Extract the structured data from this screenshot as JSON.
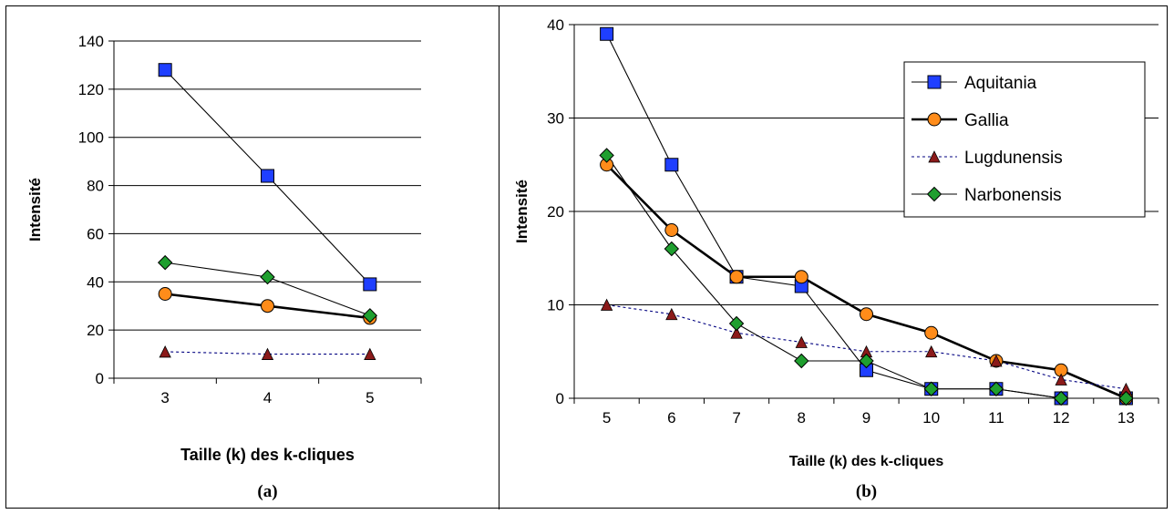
{
  "chart_data": [
    {
      "type": "line",
      "panel_label": "(a)",
      "xlabel": "Taille (k) des k-cliques",
      "ylabel": "Intensité",
      "categories": [
        "3",
        "4",
        "5"
      ],
      "ylim": [
        0,
        140
      ],
      "yticks": [
        "0",
        "20",
        "40",
        "60",
        "80",
        "100",
        "120",
        "140"
      ],
      "grid": "horizontal",
      "legend": "none",
      "series": [
        {
          "key": "aquitania",
          "values": [
            128,
            84,
            39
          ]
        },
        {
          "key": "gallia",
          "values": [
            35,
            30,
            25
          ]
        },
        {
          "key": "lugdunensis",
          "values": [
            11,
            10,
            10
          ]
        },
        {
          "key": "narbonensis",
          "values": [
            48,
            42,
            26
          ]
        }
      ]
    },
    {
      "type": "line",
      "panel_label": "(b)",
      "xlabel": "Taille (k) des k-cliques",
      "ylabel": "Intensité",
      "categories": [
        "5",
        "6",
        "7",
        "8",
        "9",
        "10",
        "11",
        "12",
        "13"
      ],
      "ylim": [
        0,
        40
      ],
      "yticks": [
        "0",
        "10",
        "20",
        "30",
        "40"
      ],
      "grid": "horizontal",
      "legend": "top-right",
      "series": [
        {
          "key": "aquitania",
          "name": "Aquitania",
          "values": [
            39,
            25,
            13,
            12,
            3,
            1,
            1,
            0,
            0
          ]
        },
        {
          "key": "gallia",
          "name": "Gallia",
          "values": [
            25,
            18,
            13,
            13,
            9,
            7,
            4,
            3,
            0
          ]
        },
        {
          "key": "lugdunensis",
          "name": "Lugdunensis",
          "values": [
            10,
            9,
            7,
            6,
            5,
            5,
            4,
            2,
            1
          ]
        },
        {
          "key": "narbonensis",
          "name": "Narbonensis",
          "values": [
            26,
            16,
            8,
            4,
            4,
            1,
            1,
            0,
            0
          ]
        }
      ]
    }
  ],
  "styles": {
    "aquitania": {
      "marker": "square",
      "fill": "#1f3fff",
      "line": "#000000",
      "dash": "solid",
      "weight": "thin"
    },
    "gallia": {
      "marker": "circle",
      "fill": "#ff8c1a",
      "line": "#000000",
      "dash": "solid",
      "weight": "thick"
    },
    "lugdunensis": {
      "marker": "triangle",
      "fill": "#8b1a1a",
      "line": "#000080",
      "dash": "dotted",
      "weight": "thin"
    },
    "narbonensis": {
      "marker": "diamond",
      "fill": "#1f9f2f",
      "line": "#000000",
      "dash": "solid",
      "weight": "thin"
    }
  }
}
